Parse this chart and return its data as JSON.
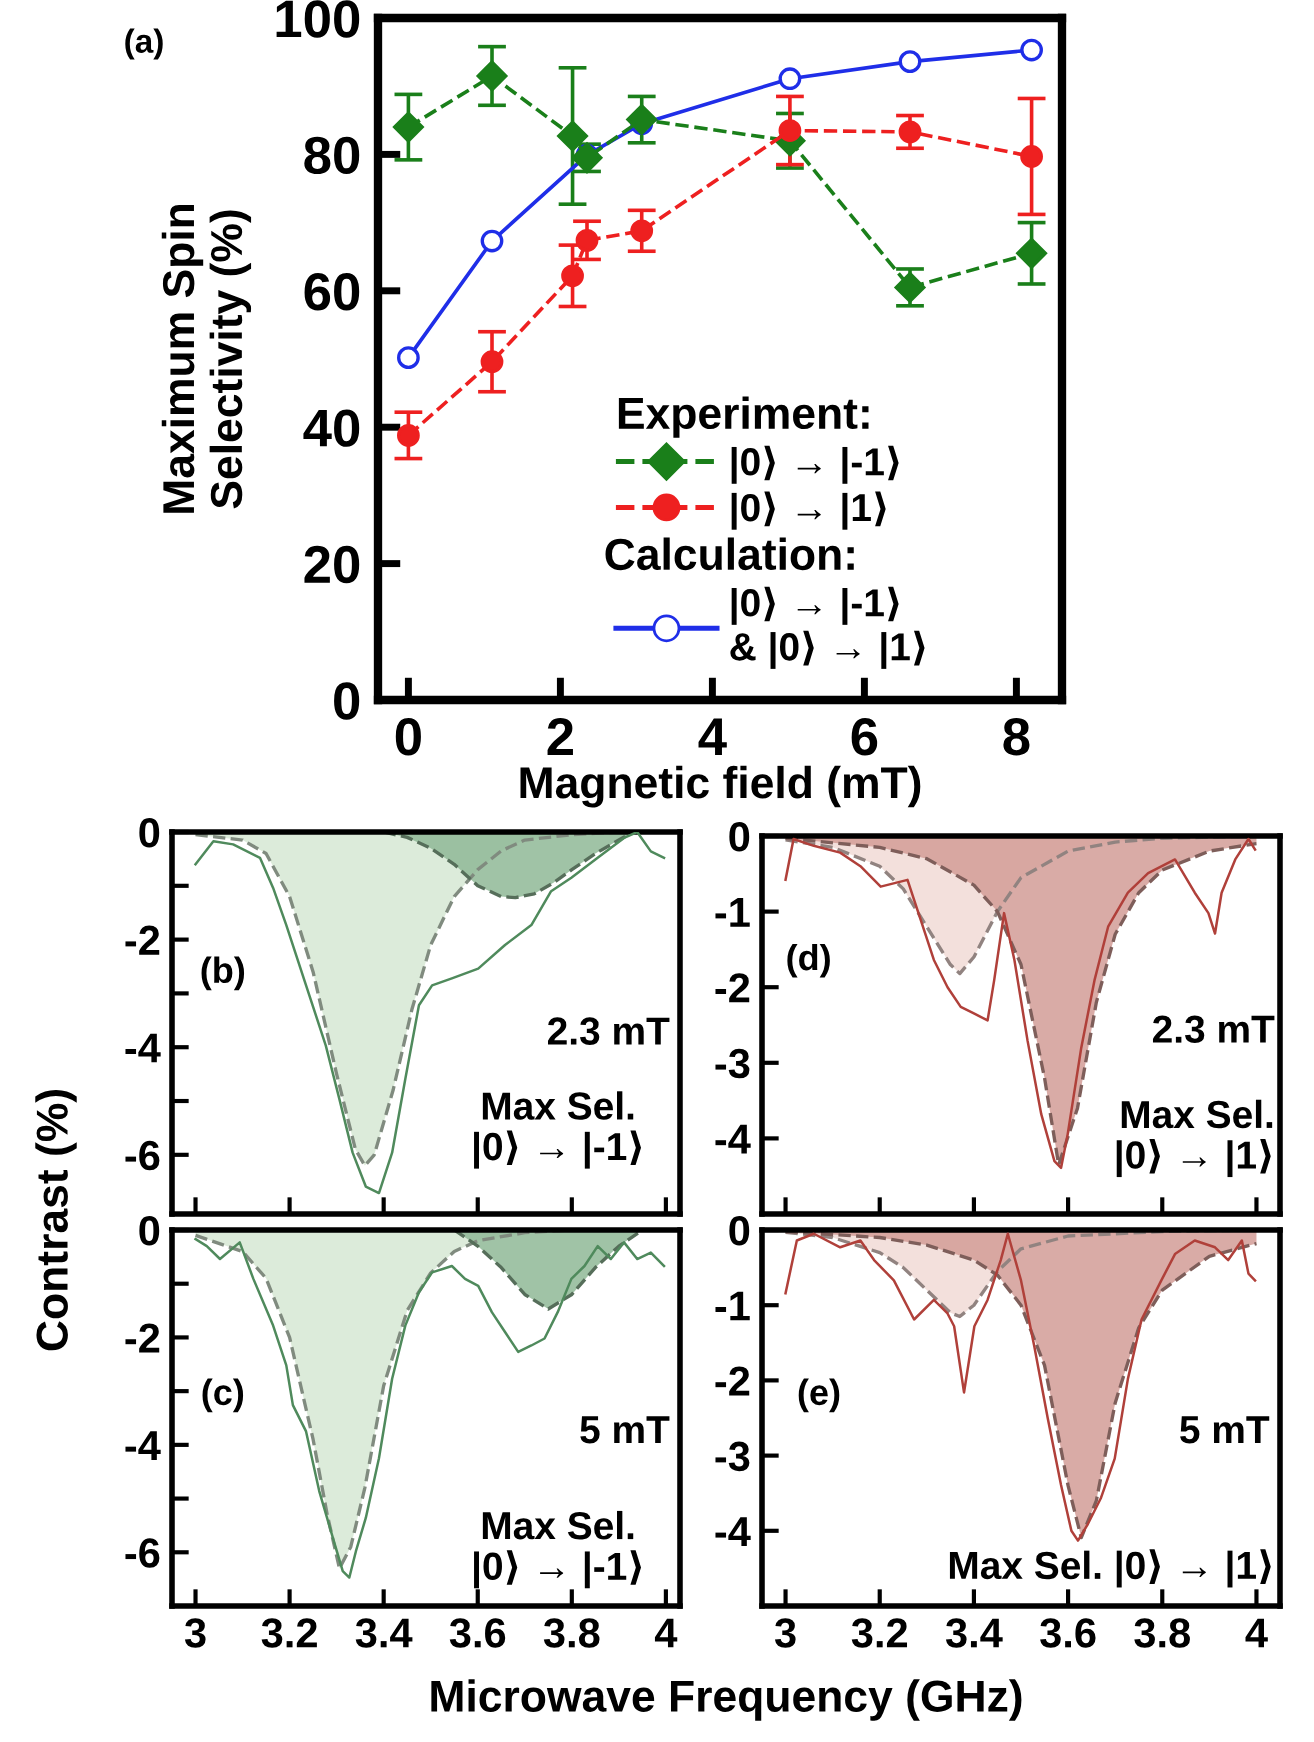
{
  "chart_data": [
    {
      "type": "line",
      "xlabel": "Magnetic field (mT)",
      "ylabel": "Maximum Spin\nSelectivity (%)",
      "legend_title": "Experiment:",
      "legend": "bottom right",
      "annotations": [
        "(a)",
        "Calculation:"
      ],
      "xlim": [
        -0.4,
        8.6
      ],
      "ylim": [
        0,
        100
      ],
      "xticks": [
        0,
        2,
        4,
        6,
        8
      ],
      "yticks": [
        0,
        20,
        40,
        60,
        80,
        100
      ],
      "series": [
        {
          "name": "|0⟩ → |-1⟩",
          "color": "#1a7f1a",
          "marker": "diamond",
          "line_style": "dashed",
          "x": [
            0,
            1.1,
            2.16,
            2.35,
            3.07,
            5.02,
            6.6,
            8.2
          ],
          "values": [
            84,
            91.5,
            82.7,
            79.5,
            85.1,
            82,
            60.5,
            65.5
          ],
          "errors": [
            4.8,
            4.3,
            10,
            2,
            3.4,
            4,
            2.7,
            4.5
          ]
        },
        {
          "name": "|0⟩ → |1⟩",
          "color": "#ee2020",
          "marker": "circle",
          "line_style": "dashed",
          "x": [
            0,
            1.1,
            2.16,
            2.35,
            3.07,
            5.02,
            6.6,
            8.2
          ],
          "values": [
            38.8,
            49.6,
            62.2,
            67.4,
            68.8,
            83.5,
            83.3,
            79.7
          ],
          "errors": [
            3.4,
            4.4,
            4.5,
            2.8,
            3,
            5,
            2.4,
            8.5
          ]
        },
        {
          "name": "|0⟩ → |-1⟩\n& |0⟩ → |1⟩",
          "color": "#1f2ee8",
          "marker": "circle",
          "line_style": "solid",
          "x": [
            0,
            1.1,
            2.35,
            3.07,
            5.02,
            6.6,
            8.2
          ],
          "values": [
            50.2,
            67.3,
            79.9,
            84.5,
            91.1,
            93.6,
            95.3
          ]
        }
      ]
    },
    {
      "type": "line",
      "ylabel": "Contrast (%)",
      "annotations": [
        "(b)",
        "2.3 mT",
        "Max Sel.\n|0⟩ → |-1⟩"
      ],
      "tick_labels": "y",
      "xlim": [
        2.95,
        4.03
      ],
      "ylim": [
        -7.1,
        0
      ],
      "xticks": [
        3,
        3.2,
        3.4,
        3.6,
        3.8,
        4
      ],
      "yticks": [
        0,
        {
          "value": -1,
          "label": null
        },
        -2,
        {
          "value": -3,
          "label": null
        },
        -4,
        {
          "value": -5,
          "label": null
        },
        -6
      ],
      "series": [
        {
          "type": "line",
          "color": "#4f8a5c",
          "x": [
            3.0,
            3.038,
            3.08,
            3.137,
            3.165,
            3.193,
            3.235,
            3.277,
            3.306,
            3.334,
            3.362,
            3.39,
            3.418,
            3.446,
            3.475,
            3.503,
            3.545,
            3.601,
            3.658,
            3.714,
            3.756,
            3.799,
            3.855,
            3.911,
            3.939,
            3.968,
            3.996
          ],
          "values": [
            -0.6,
            -0.17,
            -0.23,
            -0.48,
            -1.04,
            -1.73,
            -2.85,
            -3.97,
            -4.97,
            -5.96,
            -6.59,
            -6.71,
            -5.96,
            -4.59,
            -3.22,
            -2.85,
            -2.72,
            -2.54,
            -2.1,
            -1.73,
            -1.1,
            -0.85,
            -0.48,
            -0.11,
            0,
            -0.36,
            -0.48
          ]
        },
        {
          "type": "area",
          "color": "#d6e8d3",
          "line_style": "dashed",
          "x": [
            3.0,
            3.1,
            3.15,
            3.2,
            3.25,
            3.3,
            3.34,
            3.36,
            3.38,
            3.42,
            3.46,
            3.5,
            3.55,
            3.6,
            3.65,
            3.7,
            3.8,
            3.9
          ],
          "values": [
            -0.05,
            -0.15,
            -0.4,
            -1.2,
            -2.6,
            -4.5,
            -5.9,
            -6.2,
            -6.0,
            -4.8,
            -3.3,
            -2.1,
            -1.2,
            -0.7,
            -0.35,
            -0.15,
            -0.05,
            0
          ]
        },
        {
          "type": "area",
          "color": "#8fb896",
          "line_style": "dashed",
          "x": [
            3.4,
            3.45,
            3.5,
            3.55,
            3.6,
            3.65,
            3.68,
            3.72,
            3.76,
            3.8,
            3.85,
            3.9,
            3.93
          ],
          "values": [
            0,
            -0.1,
            -0.3,
            -0.6,
            -1.0,
            -1.2,
            -1.22,
            -1.15,
            -0.95,
            -0.7,
            -0.4,
            -0.15,
            0
          ]
        }
      ]
    },
    {
      "type": "line",
      "xlabel": "Microwave Frequency (GHz)",
      "annotations": [
        "(c)",
        "5 mT",
        "Max Sel.\n|0⟩ → |-1⟩"
      ],
      "xlim": [
        2.95,
        4.03
      ],
      "ylim": [
        -7,
        0
      ],
      "xticks": [
        3,
        3.2,
        3.4,
        3.6,
        3.8,
        4
      ],
      "yticks": [
        0,
        {
          "value": -1,
          "label": null
        },
        -2,
        {
          "value": -3,
          "label": null
        },
        -4,
        {
          "value": -5,
          "label": null
        },
        -6
      ],
      "series": [
        {
          "type": "line",
          "color": "#4f8a5c",
          "x": [
            3.0,
            3.024,
            3.052,
            3.094,
            3.123,
            3.165,
            3.193,
            3.207,
            3.235,
            3.263,
            3.292,
            3.313,
            3.327,
            3.341,
            3.362,
            3.39,
            3.418,
            3.446,
            3.475,
            3.503,
            3.545,
            3.573,
            3.601,
            3.63,
            3.658,
            3.686,
            3.714,
            3.742,
            3.77,
            3.799,
            3.827,
            3.855,
            3.883,
            3.911,
            3.939,
            3.968,
            3.996
          ],
          "values": [
            -0.17,
            -0.3,
            -0.54,
            -0.23,
            -0.91,
            -1.78,
            -2.52,
            -3.26,
            -3.75,
            -4.86,
            -5.73,
            -6.35,
            -6.47,
            -5.98,
            -5.36,
            -4.25,
            -2.77,
            -1.78,
            -1.16,
            -0.79,
            -0.67,
            -0.91,
            -1.04,
            -1.53,
            -1.9,
            -2.27,
            -2.15,
            -2.02,
            -1.53,
            -0.91,
            -0.67,
            -0.3,
            -0.54,
            -0.23,
            -0.54,
            -0.42,
            -0.67
          ]
        },
        {
          "type": "area",
          "color": "#d6e8d3",
          "line_style": "dashed",
          "x": [
            3.0,
            3.1,
            3.15,
            3.2,
            3.25,
            3.28,
            3.306,
            3.33,
            3.36,
            3.4,
            3.45,
            3.5,
            3.55,
            3.6,
            3.7,
            3.8
          ],
          "values": [
            -0.1,
            -0.4,
            -0.9,
            -2.0,
            -3.9,
            -5.3,
            -6.3,
            -5.9,
            -4.8,
            -2.9,
            -1.5,
            -0.8,
            -0.4,
            -0.2,
            -0.05,
            0
          ]
        },
        {
          "type": "area",
          "color": "#8fb896",
          "line_style": "dashed",
          "x": [
            3.55,
            3.6,
            3.65,
            3.7,
            3.75,
            3.8,
            3.85,
            3.9,
            3.95
          ],
          "values": [
            0,
            -0.3,
            -0.7,
            -1.2,
            -1.47,
            -1.2,
            -0.7,
            -0.3,
            0
          ]
        }
      ]
    },
    {
      "type": "line",
      "annotations": [
        "(d)",
        "2.3 mT",
        "Max Sel.\n|0⟩ → |1⟩"
      ],
      "tick_labels": "y",
      "xlim": [
        2.95,
        4.05
      ],
      "ylim": [
        -5,
        0
      ],
      "xticks": [
        3,
        3.2,
        3.4,
        3.6,
        3.8,
        4
      ],
      "yticks": [
        0,
        -1,
        -2,
        -3,
        -4
      ],
      "series": [
        {
          "type": "line",
          "color": "#b0403a",
          "x": [
            3.0,
            3.017,
            3.06,
            3.116,
            3.159,
            3.202,
            3.259,
            3.287,
            3.315,
            3.344,
            3.372,
            3.401,
            3.429,
            3.443,
            3.464,
            3.486,
            3.514,
            3.543,
            3.571,
            3.585,
            3.599,
            3.628,
            3.656,
            3.685,
            3.727,
            3.77,
            3.827,
            3.869,
            3.898,
            3.912,
            3.926,
            3.955,
            3.983,
            3.997
          ],
          "values": [
            -0.58,
            -0.04,
            -0.13,
            -0.22,
            -0.4,
            -0.67,
            -0.58,
            -1.11,
            -1.64,
            -2.0,
            -2.26,
            -2.35,
            -2.44,
            -1.91,
            -1.02,
            -1.64,
            -2.71,
            -3.68,
            -4.3,
            -4.39,
            -3.95,
            -2.8,
            -1.91,
            -1.2,
            -0.75,
            -0.49,
            -0.31,
            -0.75,
            -1.02,
            -1.29,
            -0.75,
            -0.31,
            -0.04,
            -0.18
          ]
        },
        {
          "type": "area",
          "color": "#f1dad6",
          "line_style": "dashed",
          "x": [
            3.0,
            3.1,
            3.2,
            3.25,
            3.3,
            3.35,
            3.37,
            3.4,
            3.45,
            3.5,
            3.6,
            3.7,
            3.8,
            4.0
          ],
          "values": [
            -0.05,
            -0.15,
            -0.4,
            -0.7,
            -1.2,
            -1.7,
            -1.82,
            -1.6,
            -1.0,
            -0.55,
            -0.2,
            -0.08,
            -0.03,
            0
          ]
        },
        {
          "type": "area",
          "color": "#d29c96",
          "line_style": "dashed",
          "x": [
            3.0,
            3.2,
            3.3,
            3.4,
            3.45,
            3.5,
            3.55,
            3.58,
            3.62,
            3.66,
            3.7,
            3.75,
            3.8,
            3.9,
            4.0
          ],
          "values": [
            -0.03,
            -0.15,
            -0.3,
            -0.65,
            -1.0,
            -1.7,
            -3.2,
            -4.35,
            -3.6,
            -2.2,
            -1.3,
            -0.75,
            -0.45,
            -0.2,
            -0.1
          ]
        }
      ]
    },
    {
      "type": "line",
      "annotations": [
        "(e)",
        "5 mT",
        "Max Sel. |0⟩ → |1⟩"
      ],
      "xlim": [
        2.95,
        4.05
      ],
      "ylim": [
        -5,
        0
      ],
      "xticks": [
        3,
        3.2,
        3.4,
        3.6,
        3.8,
        4
      ],
      "yticks": [
        0,
        -1,
        -2,
        -3,
        -4
      ],
      "series": [
        {
          "type": "line",
          "color": "#b0403a",
          "x": [
            3.0,
            3.024,
            3.06,
            3.116,
            3.159,
            3.188,
            3.23,
            3.273,
            3.315,
            3.344,
            3.358,
            3.379,
            3.401,
            3.429,
            3.457,
            3.472,
            3.5,
            3.528,
            3.557,
            3.585,
            3.607,
            3.621,
            3.642,
            3.67,
            3.699,
            3.727,
            3.756,
            3.798,
            3.827,
            3.869,
            3.912,
            3.94,
            3.969,
            3.983,
            3.997
          ],
          "values": [
            -0.84,
            -0.14,
            -0.05,
            -0.23,
            -0.14,
            -0.4,
            -0.67,
            -1.19,
            -0.93,
            -1.11,
            -1.28,
            -2.16,
            -1.28,
            -0.93,
            -0.4,
            -0.05,
            -0.67,
            -1.54,
            -2.51,
            -3.39,
            -4.0,
            -4.13,
            -3.91,
            -3.56,
            -3.04,
            -1.98,
            -1.19,
            -0.67,
            -0.32,
            -0.14,
            -0.23,
            -0.4,
            -0.14,
            -0.58,
            -0.67
          ]
        },
        {
          "type": "area",
          "color": "#f1dad6",
          "line_style": "dashed",
          "x": [
            3.0,
            3.1,
            3.2,
            3.25,
            3.3,
            3.35,
            3.37,
            3.4,
            3.45,
            3.5,
            3.6,
            3.8,
            4.0
          ],
          "values": [
            -0.03,
            -0.1,
            -0.3,
            -0.5,
            -0.8,
            -1.1,
            -1.15,
            -1.0,
            -0.55,
            -0.25,
            -0.08,
            -0.02,
            0
          ]
        },
        {
          "type": "area",
          "color": "#d29c96",
          "line_style": "dashed",
          "x": [
            3.0,
            3.2,
            3.3,
            3.4,
            3.45,
            3.5,
            3.55,
            3.6,
            3.628,
            3.66,
            3.7,
            3.75,
            3.8,
            3.9,
            4.0
          ],
          "values": [
            -0.02,
            -0.1,
            -0.2,
            -0.4,
            -0.6,
            -1.0,
            -1.8,
            -3.4,
            -4.09,
            -3.6,
            -2.3,
            -1.3,
            -0.8,
            -0.35,
            -0.18
          ]
        }
      ]
    }
  ]
}
